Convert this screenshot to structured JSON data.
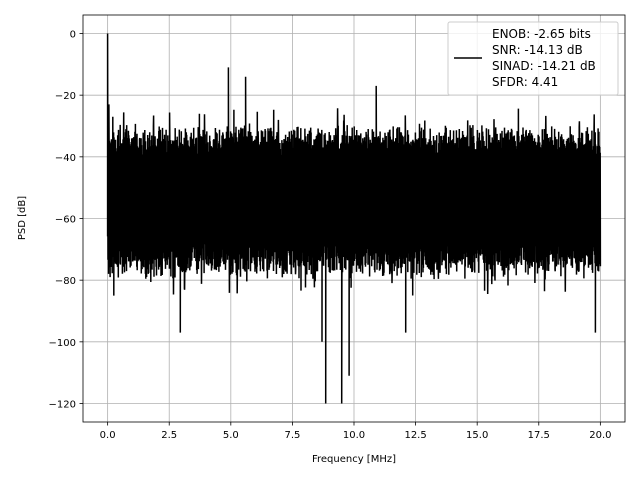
{
  "chart_data": {
    "type": "line",
    "title": "",
    "xlabel": "Frequency [MHz]",
    "ylabel": "PSD [dB]",
    "xlim": [
      -1.0,
      21.0
    ],
    "ylim": [
      -126,
      6
    ],
    "xticks": [
      "0.0",
      "2.5",
      "5.0",
      "7.5",
      "10.0",
      "12.5",
      "15.0",
      "17.5",
      "20.0"
    ],
    "xtick_values": [
      0,
      2.5,
      5,
      7.5,
      10,
      12.5,
      15,
      17.5,
      20
    ],
    "yticks": [
      "0",
      "−20",
      "−40",
      "−60",
      "−80",
      "−100",
      "−120"
    ],
    "ytick_values": [
      0,
      -20,
      -40,
      -60,
      -80,
      -100,
      -120
    ],
    "grid": true,
    "legend_position": "top-right",
    "series": [
      {
        "name": "ENOB: -2.65 bits\nSNR: -14.13 dB\nSINAD: -14.21 dB\nSFDR: 4.41",
        "color": "#000000",
        "x_range": [
          0,
          20
        ],
        "typical_band_db": [
          -75,
          -32
        ],
        "notable_points": [
          {
            "x": 0.0,
            "y": 0
          },
          {
            "x": 0.05,
            "y": -23
          },
          {
            "x": 0.25,
            "y": -85
          },
          {
            "x": 2.95,
            "y": -97
          },
          {
            "x": 4.9,
            "y": -11
          },
          {
            "x": 5.6,
            "y": -14
          },
          {
            "x": 8.7,
            "y": -100
          },
          {
            "x": 8.85,
            "y": -120
          },
          {
            "x": 9.5,
            "y": -120
          },
          {
            "x": 9.8,
            "y": -111
          },
          {
            "x": 10.9,
            "y": -17
          },
          {
            "x": 12.1,
            "y": -97
          },
          {
            "x": 19.8,
            "y": -97
          }
        ]
      }
    ],
    "legend": {
      "lines": [
        "ENOB: -2.65 bits",
        "SNR: -14.13 dB",
        "SINAD: -14.21 dB",
        "SFDR: 4.41"
      ]
    }
  }
}
